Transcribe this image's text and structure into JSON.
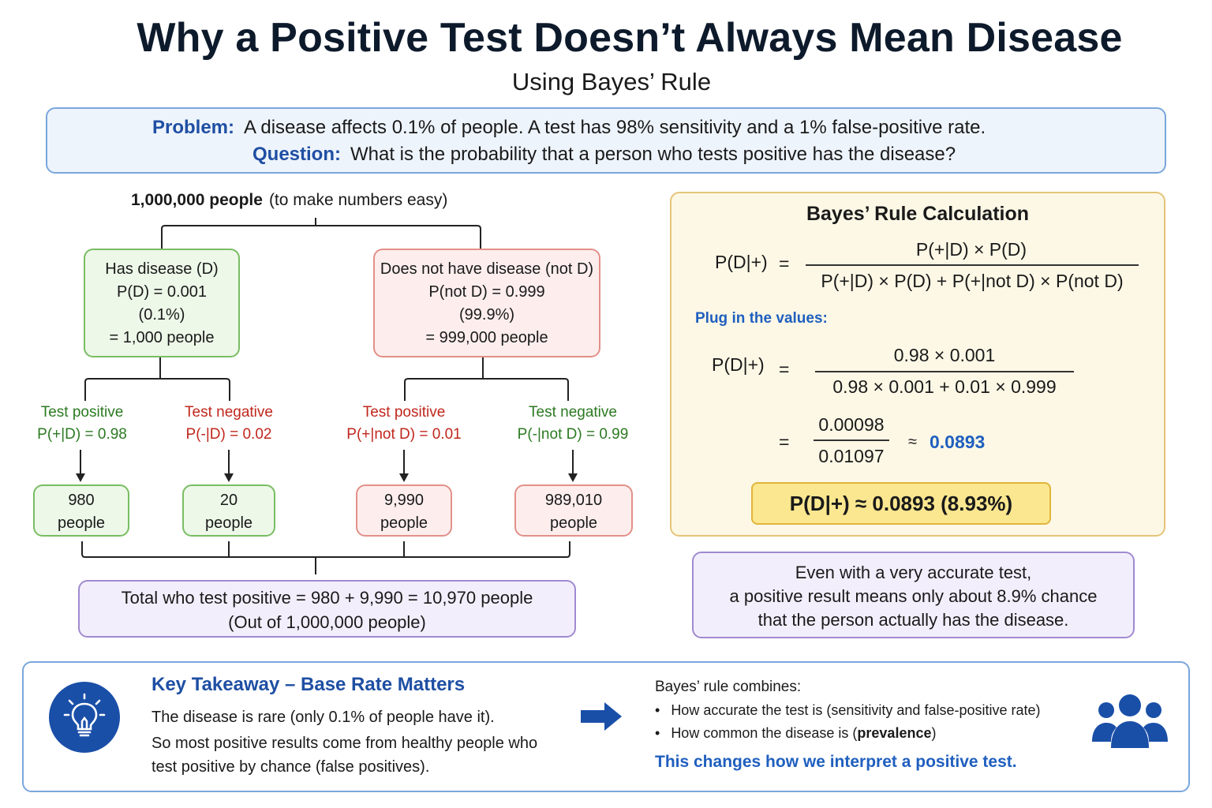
{
  "title": "Why a Positive Test Doesn’t Always Mean Disease",
  "subtitle": "Using Bayes’ Rule",
  "problem": {
    "label": "Problem:",
    "text": "A disease affects 0.1% of people. A test has 98% sensitivity and a 1% false-positive rate.",
    "question_label": "Question:",
    "question_text": "What is the probability that a person who tests positive has the disease?"
  },
  "tree": {
    "root_bold": "1,000,000 people",
    "root_note": "(to make numbers easy)",
    "disease": {
      "title": "Has disease (D)",
      "prob": "P(D) = 0.001",
      "pct": "(0.1%)",
      "count": "= 1,000 people"
    },
    "no_disease": {
      "title": "Does not have disease (not D)",
      "prob": "P(not D) = 0.999",
      "pct": "(99.9%)",
      "count": "= 999,000 people"
    },
    "branches": [
      {
        "label": "Test positive",
        "prob_prefix": "P(+|D) = ",
        "prob_value": "0.98",
        "count": "980",
        "unit": "people"
      },
      {
        "label": "Test negative",
        "prob_prefix": "P(-|D) = ",
        "prob_value": "0.02",
        "count": "20",
        "unit": "people"
      },
      {
        "label": "Test positive",
        "prob_prefix": "P(+|not D) = ",
        "prob_value": "0.01",
        "count": "9,990",
        "unit": "people"
      },
      {
        "label": "Test negative",
        "prob_prefix": "P(-|not D) = ",
        "prob_value": "0.99",
        "count": "989,010",
        "unit": "people"
      }
    ],
    "total_line1": "Total who test positive = 980 + 9,990 = 10,970 people",
    "total_line2": "(Out of 1,000,000 people)"
  },
  "calc": {
    "title": "Bayes’ Rule Calculation",
    "lhs": "P(D|+)",
    "eq": "=",
    "numerator": "P(+|D) × P(D)",
    "denominator": "P(+|D) × P(D) + P(+|not D) × P(not D)",
    "plug_label": "Plug in the values:",
    "plug_lhs": "P(D|+)",
    "plug_numerator": "0.98 × 0.001",
    "plug_denominator": "0.98 × 0.001 + 0.01 × 0.999",
    "step_numerator": "0.00098",
    "step_denominator": "0.01097",
    "approx": "≈",
    "approx_value": "0.0893",
    "result": "P(D|+) ≈ 0.0893 (8.93%)"
  },
  "insight": {
    "line1": "Even with a very accurate test,",
    "line2": "a positive result means only about 8.9% chance",
    "line3": "that the person actually has the disease."
  },
  "takeaway": {
    "title": "Key Takeaway – Base Rate Matters",
    "line1": "The disease is rare (only 0.1% of people have it).",
    "line2": "So most positive results come from healthy people who",
    "line3": "test positive by chance (false positives).",
    "combine_title": "Bayes’ rule combines:",
    "bullet1": "How accurate the test is (sensitivity and false-positive rate)",
    "bullet2_prefix": "How common the disease is (",
    "bullet2_bold": "prevalence",
    "bullet2_suffix": ")",
    "note": "This changes how we interpret a positive test."
  },
  "icons": {
    "bulb": "lightbulb-icon",
    "arrow": "arrow-right-icon",
    "people": "people-group-icon"
  },
  "colors": {
    "accent_blue": "#1f4fa3",
    "green": "#2c7a22",
    "red": "#c0271d",
    "result_fill": "#fbe78f"
  }
}
